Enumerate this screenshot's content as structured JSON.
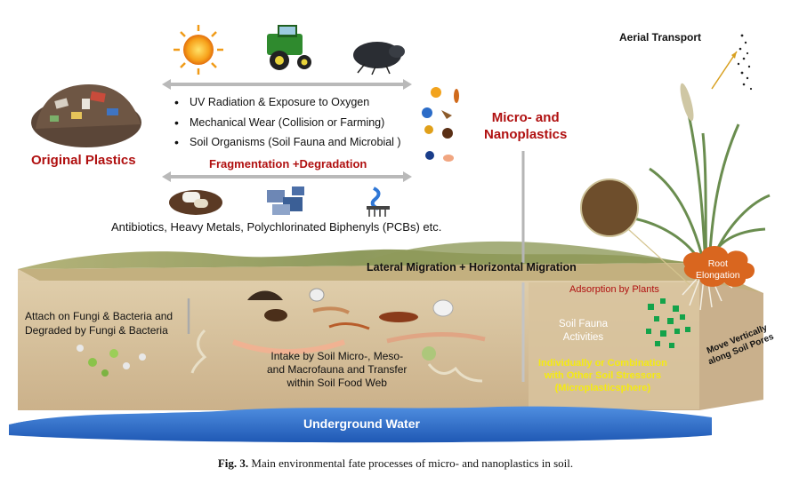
{
  "title_original": "Original Plastics",
  "title_micro": "Micro- and\nNanoplastics",
  "micro_line1": "Micro- and",
  "micro_line2": "Nanoplastics",
  "fragmentation_items": [
    "UV Radiation & Exposure to Oxygen",
    "Mechanical Wear (Collision or Farming)",
    "Soil Organisms (Soil Fauna and Microbial )"
  ],
  "fragmentation_label": "Fragmentation +Degradation",
  "pollutants_label": "Antibiotics, Heavy Metals, Polychlorinated Biphenyls (PCBs) etc.",
  "aerial_transport": "Aerial Transport",
  "migration_label": "Lateral  Migration + Horizontal Migration",
  "root_elongation": "Root\nElongation",
  "root_line1": "Root",
  "root_line2": "Elongation",
  "adsorption_plants": "Adsorption by Plants",
  "fungi_line1": "Attach on Fungi & Bacteria and",
  "fungi_line2": "Degraded by Fungi & Bacteria",
  "intake_line1": "Intake by Soil Micro-, Meso-",
  "intake_line2": "and Macrofauna and Transfer",
  "intake_line3": "within Soil Food Web",
  "fauna_line1": "Soil Fauna",
  "fauna_line2": "Activities",
  "stressor_line1": "Individually or Combination",
  "stressor_line2": "with Other Soil Stressors",
  "stressor_line3": "(Microplasticsphere)",
  "vertical_line1": "Move Vertically",
  "vertical_line2": "along Soil Pores",
  "underground_water": "Underground Water",
  "caption_label": "Fig. 3.",
  "caption_text": "Main environmental fate processes of micro- and nanoplastics in soil.",
  "colors": {
    "accent_red": "#b01010",
    "soil": "#d9c6a2",
    "soil_side": "#cdb592",
    "grass": "#9aa36a",
    "water": "#2f6fcd",
    "particle_green": "#13a34a",
    "stressor_yellow": "#f4ea12",
    "root_orange": "#d9661f"
  }
}
